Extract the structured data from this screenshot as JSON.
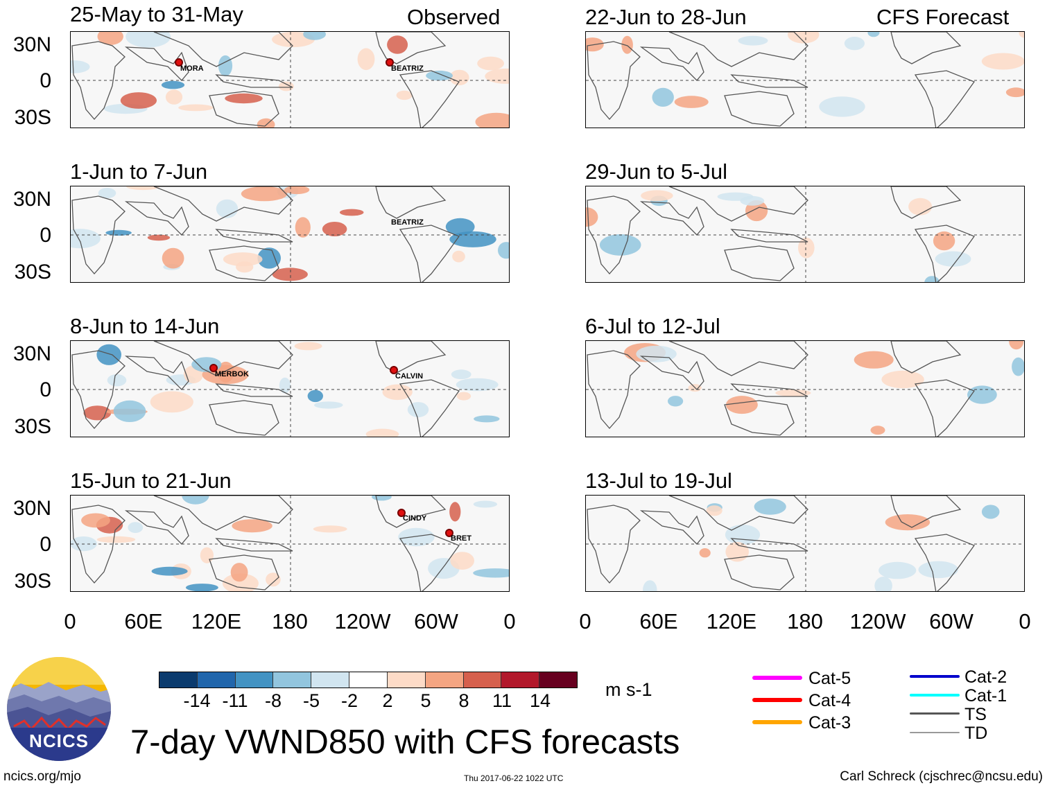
{
  "header": {
    "observed_label": "Observed",
    "forecast_label": "CFS Forecast"
  },
  "panels_left": [
    {
      "title": "25-May to 31-May",
      "storms": [
        {
          "name": "MORA"
        },
        {
          "name": "BEATRIZ"
        }
      ]
    },
    {
      "title": "1-Jun to 7-Jun",
      "storms": [
        {
          "name": "BEATRIZ"
        }
      ]
    },
    {
      "title": "8-Jun to 14-Jun",
      "storms": [
        {
          "name": "MERBOK"
        },
        {
          "name": "CALVIN"
        }
      ]
    },
    {
      "title": "15-Jun to 21-Jun",
      "storms": [
        {
          "name": "CINDY"
        },
        {
          "name": "BRET"
        }
      ]
    }
  ],
  "panels_right": [
    {
      "title": "22-Jun to 28-Jun"
    },
    {
      "title": "29-Jun to 5-Jul"
    },
    {
      "title": "6-Jul to 12-Jul"
    },
    {
      "title": "13-Jul to 19-Jul"
    }
  ],
  "y_ticks": [
    "30N",
    "0",
    "30S"
  ],
  "x_ticks": [
    "0",
    "60E",
    "120E",
    "180",
    "120W",
    "60W",
    "0"
  ],
  "colorbar": {
    "colors": [
      "#0b3b6e",
      "#2166ac",
      "#4393c3",
      "#92c5de",
      "#d1e5f0",
      "#ffffff",
      "#fddbc7",
      "#f4a582",
      "#d6604d",
      "#b2182b",
      "#67001f"
    ],
    "ticks": [
      "-14",
      "-11",
      "-8",
      "-5",
      "-2",
      "2",
      "5",
      "8",
      "11",
      "14"
    ],
    "units": "m s-1"
  },
  "legend": [
    {
      "label": "Cat-5",
      "color": "#ff00ff"
    },
    {
      "label": "Cat-4",
      "color": "#ff0000"
    },
    {
      "label": "Cat-3",
      "color": "#ffa500"
    },
    {
      "label": "Cat-2",
      "color": "#0000cc"
    },
    {
      "label": "Cat-1",
      "color": "#00ffff"
    },
    {
      "label": "TS",
      "color": "#555555"
    },
    {
      "label": "TD",
      "color": "#999999"
    }
  ],
  "title": "7-day VWND850 with CFS forecasts",
  "logo_text": "NCICS",
  "footer": {
    "url": "ncics.org/mjo",
    "timestamp": "Thu 2017-06-22 1022 UTC",
    "author": "Carl Schreck (cjschrec@ncsu.edu)"
  }
}
